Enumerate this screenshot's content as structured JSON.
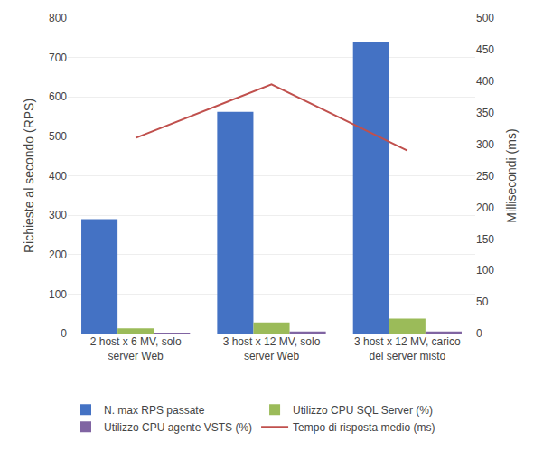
{
  "chart_data": {
    "type": "bar",
    "categories": [
      "2 host x 6 MV, solo\nserver Web",
      "3 host x 12 MV, solo\nserver Web",
      "3 host x 12 MV, carico\ndel server misto"
    ],
    "series": [
      {
        "name": "N. max RPS passate",
        "type": "bar",
        "color": "#4472C4",
        "values": [
          290,
          562,
          740
        ]
      },
      {
        "name": "Utilizzo CPU SQL Server (%)",
        "type": "bar",
        "color": "#9BBB59",
        "values": [
          13,
          28,
          38
        ]
      },
      {
        "name": "Utilizzo CPU agente VSTS (%)",
        "type": "bar",
        "color": "#8064A2",
        "values": [
          1,
          5,
          5
        ]
      },
      {
        "name": "Tempo di risposta medio (ms)",
        "type": "line",
        "axis": "y2",
        "color": "#C0504D",
        "values": [
          310,
          395,
          290
        ]
      }
    ],
    "ylabel": "Richieste al secondo (RPS)",
    "y2label": "Millisecondi (ms)",
    "ylim": [
      0,
      800
    ],
    "yticks": [
      0,
      100,
      200,
      300,
      400,
      500,
      600,
      700,
      800
    ],
    "y2lim": [
      0,
      500
    ],
    "y2ticks": [
      0,
      50,
      100,
      150,
      200,
      250,
      300,
      350,
      400,
      450,
      500
    ],
    "grid": true,
    "legend": "bottom"
  }
}
